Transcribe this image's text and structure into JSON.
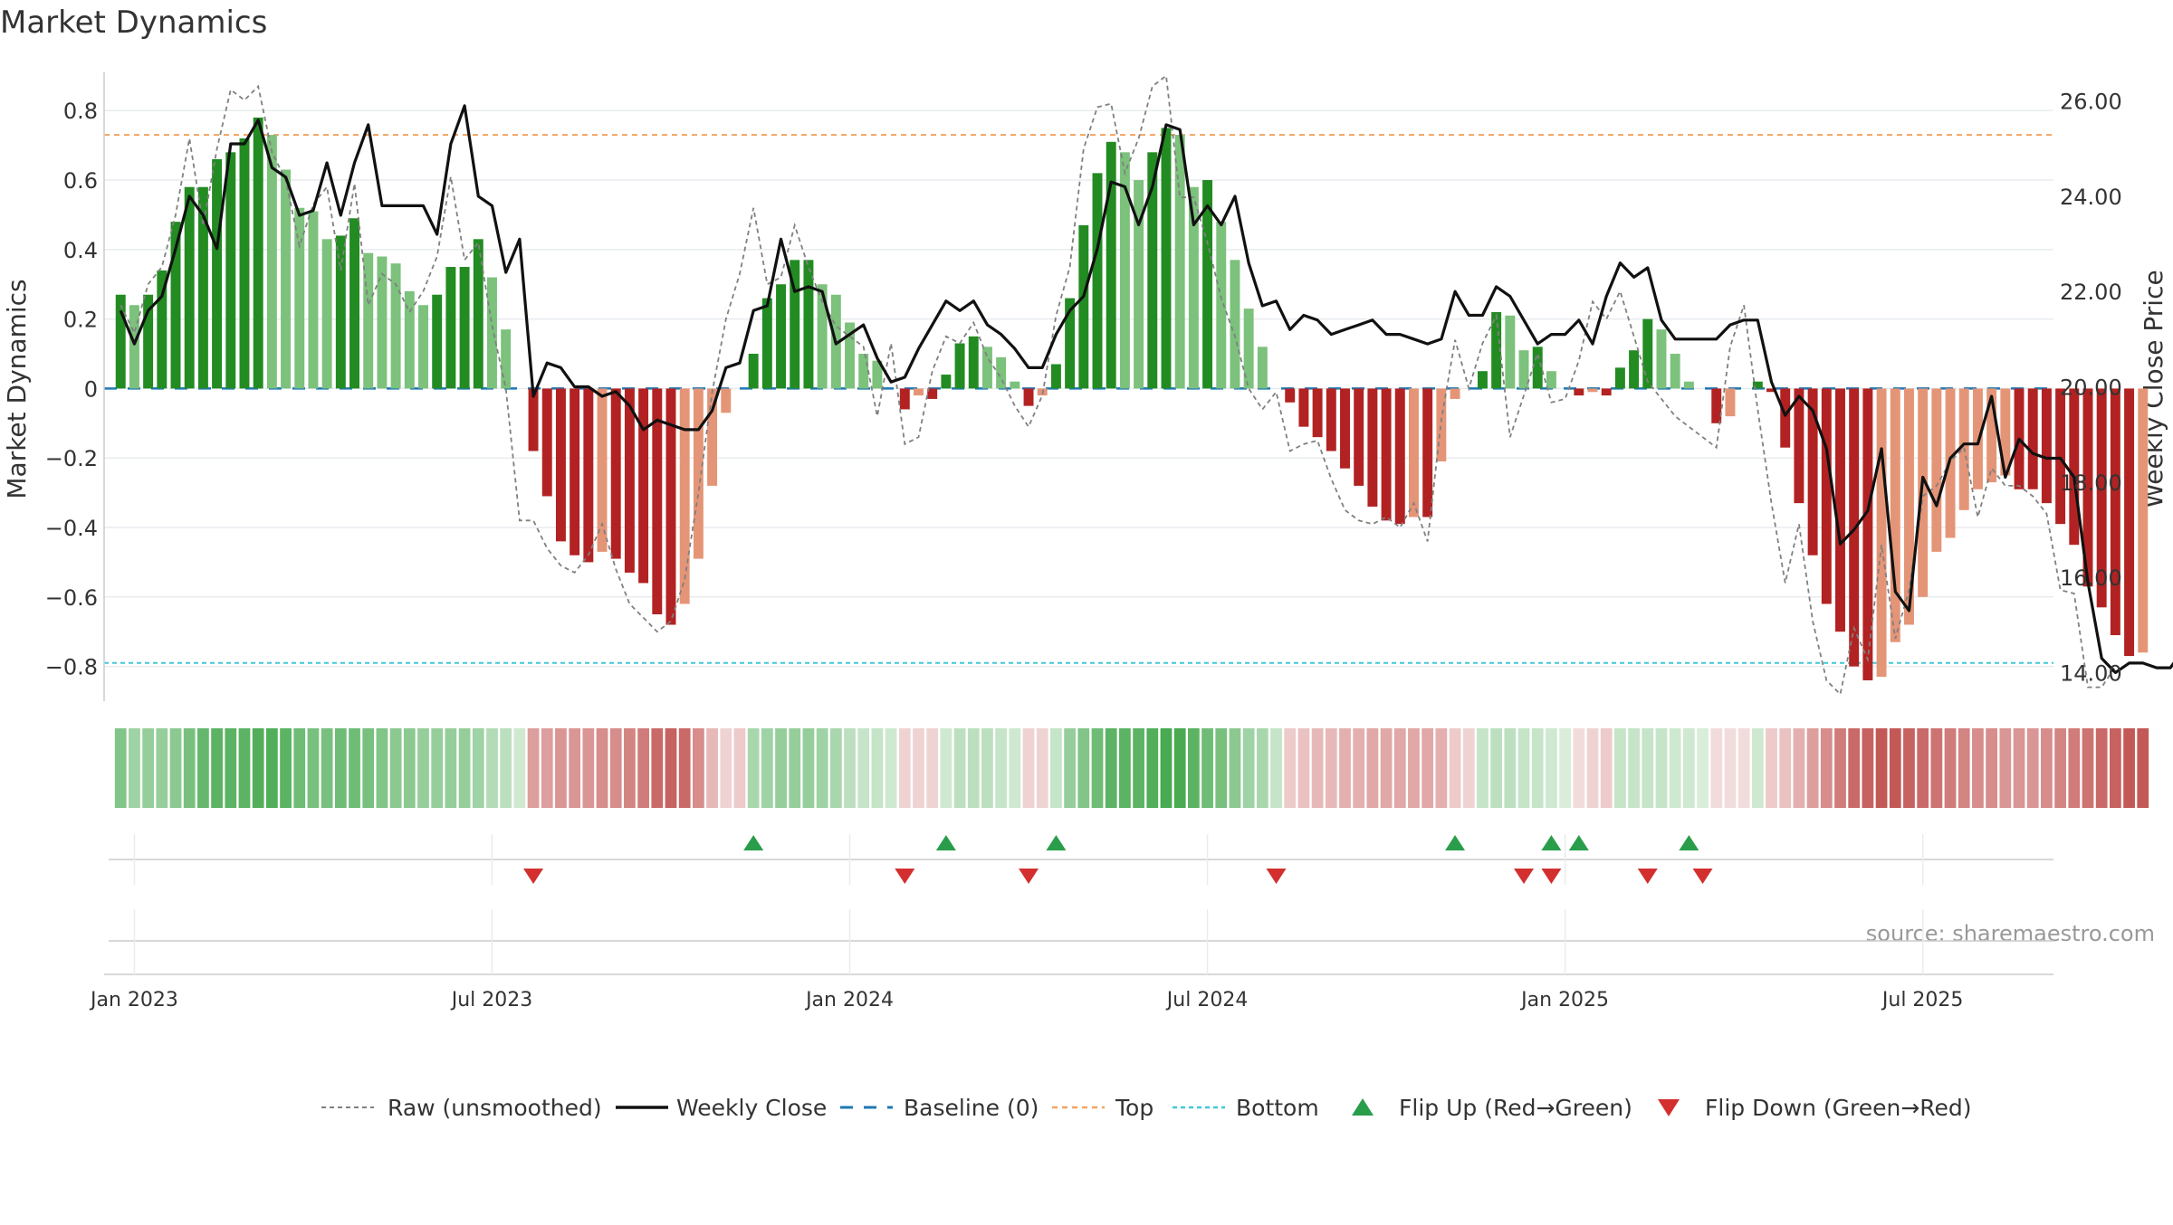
{
  "chart_data": {
    "type": "bar",
    "title": "Market Dynamics",
    "ylabel": "Market Dynamics",
    "ylabel_right": "Weekly Close Price",
    "ylim": [
      -0.9,
      0.91
    ],
    "ylim_right": [
      13.4,
      26.6
    ],
    "y_ticks": [
      "−0.8",
      "−0.6",
      "−0.4",
      "−0.2",
      "0",
      "0.2",
      "0.4",
      "0.6",
      "0.8"
    ],
    "y_tick_values": [
      -0.8,
      -0.6,
      -0.4,
      -0.2,
      0,
      0.2,
      0.4,
      0.6,
      0.8
    ],
    "y_right_ticks": [
      "14.00",
      "16.00",
      "18.00",
      "20.00",
      "22.00",
      "24.00",
      "26.00"
    ],
    "y_right_tick_values": [
      14,
      16,
      18,
      20,
      22,
      24,
      26
    ],
    "x_ticks": [
      "Jan 2023",
      "Jul 2023",
      "Jan 2024",
      "Jul 2024",
      "Jan 2025",
      "Jul 2025"
    ],
    "x_tick_positions_weeks": [
      1,
      27,
      53,
      79,
      105,
      131
    ],
    "x_range_weeks": [
      -1.2,
      140.5
    ],
    "grid": true,
    "legend_position": "bottom",
    "reference_lines": {
      "top": 0.73,
      "bottom": -0.79,
      "baseline": 0
    },
    "dynamics": [
      0.27,
      0.24,
      0.27,
      0.34,
      0.48,
      0.58,
      0.58,
      0.66,
      0.68,
      0.72,
      0.78,
      0.73,
      0.63,
      0.52,
      0.51,
      0.43,
      0.44,
      0.49,
      0.39,
      0.38,
      0.36,
      0.28,
      0.24,
      0.27,
      0.35,
      0.35,
      0.43,
      0.32,
      0.17,
      0.0,
      -0.18,
      -0.31,
      -0.44,
      -0.48,
      -0.5,
      -0.47,
      -0.49,
      -0.53,
      -0.56,
      -0.65,
      -0.68,
      -0.62,
      -0.49,
      -0.28,
      -0.07,
      0.0,
      0.1,
      0.26,
      0.3,
      0.37,
      0.37,
      0.3,
      0.27,
      0.19,
      0.1,
      0.08,
      0.0,
      -0.06,
      -0.02,
      -0.03,
      0.04,
      0.13,
      0.15,
      0.12,
      0.09,
      0.02,
      -0.05,
      -0.02,
      0.07,
      0.26,
      0.47,
      0.62,
      0.71,
      0.68,
      0.6,
      0.68,
      0.75,
      0.73,
      0.58,
      0.6,
      0.48,
      0.37,
      0.23,
      0.12,
      0.0,
      -0.04,
      -0.11,
      -0.14,
      -0.18,
      -0.23,
      -0.28,
      -0.34,
      -0.38,
      -0.39,
      -0.37,
      -0.37,
      -0.21,
      -0.03,
      0.0,
      0.05,
      0.22,
      0.21,
      0.11,
      0.12,
      0.05,
      0.0,
      -0.02,
      -0.01,
      -0.02,
      0.06,
      0.11,
      0.2,
      0.17,
      0.1,
      0.02,
      0.0,
      -0.1,
      -0.08,
      0.0,
      0.02,
      -0.01,
      -0.17,
      -0.33,
      -0.48,
      -0.62,
      -0.7,
      -0.8,
      -0.84,
      -0.83,
      -0.73,
      -0.68,
      -0.6,
      -0.47,
      -0.43,
      -0.35,
      -0.29,
      -0.27,
      -0.25,
      -0.29,
      -0.29,
      -0.33,
      -0.39,
      -0.45,
      -0.57,
      -0.63,
      -0.71,
      -0.77,
      -0.76
    ],
    "series": [
      {
        "name": "Raw (unsmoothed)",
        "values": [
          0.24,
          0.16,
          0.3,
          0.35,
          0.5,
          0.72,
          0.47,
          0.69,
          0.86,
          0.83,
          0.87,
          0.68,
          0.6,
          0.41,
          0.53,
          0.58,
          0.34,
          0.59,
          0.24,
          0.33,
          0.3,
          0.22,
          0.28,
          0.38,
          0.61,
          0.37,
          0.42,
          0.18,
          0.0,
          -0.38,
          -0.38,
          -0.46,
          -0.51,
          -0.53,
          -0.48,
          -0.39,
          -0.52,
          -0.62,
          -0.66,
          -0.7,
          -0.67,
          -0.55,
          -0.3,
          -0.01,
          0.2,
          0.33,
          0.52,
          0.3,
          0.32,
          0.47,
          0.35,
          0.25,
          0.18,
          0.15,
          0.12,
          -0.08,
          0.13,
          -0.16,
          -0.14,
          0.05,
          0.15,
          0.13,
          0.19,
          0.09,
          0.03,
          -0.05,
          -0.11,
          -0.02,
          0.21,
          0.35,
          0.69,
          0.81,
          0.82,
          0.62,
          0.72,
          0.87,
          0.9,
          0.55,
          0.55,
          0.42,
          0.26,
          0.15,
          0.0,
          -0.06,
          -0.01,
          -0.18,
          -0.16,
          -0.15,
          -0.26,
          -0.35,
          -0.38,
          -0.39,
          -0.37,
          -0.4,
          -0.33,
          -0.44,
          -0.09,
          0.14,
          0.0,
          0.13,
          0.21,
          -0.14,
          -0.02,
          0.1,
          -0.04,
          -0.03,
          0.08,
          0.25,
          0.2,
          0.28,
          0.15,
          0.02,
          -0.03,
          -0.08,
          -0.11,
          -0.14,
          -0.17,
          0.12,
          0.24,
          -0.06,
          -0.33,
          -0.56,
          -0.39,
          -0.67,
          -0.84,
          -0.88,
          -0.69,
          -0.78,
          -0.45,
          -0.72,
          -0.58,
          -0.31,
          -0.28,
          -0.21,
          -0.17,
          -0.37,
          -0.23,
          -0.28,
          -0.28,
          -0.31,
          -0.36,
          -0.58,
          -0.59,
          -0.86,
          -0.86,
          -0.8
        ]
      },
      {
        "name": "Weekly Close",
        "values": [
          21.6,
          20.9,
          21.6,
          21.9,
          22.9,
          24.0,
          23.6,
          22.9,
          25.1,
          25.1,
          25.6,
          24.6,
          24.4,
          23.6,
          23.7,
          24.7,
          23.6,
          24.7,
          25.5,
          23.8,
          23.8,
          23.8,
          23.8,
          23.2,
          25.1,
          25.9,
          24.0,
          23.8,
          22.4,
          23.1,
          19.8,
          20.5,
          20.4,
          20.0,
          20.0,
          19.8,
          19.9,
          19.6,
          19.1,
          19.3,
          19.2,
          19.1,
          19.1,
          19.5,
          20.4,
          20.5,
          21.6,
          21.7,
          23.1,
          22.0,
          22.1,
          22.0,
          20.9,
          21.1,
          21.3,
          20.6,
          20.1,
          20.2,
          20.8,
          21.3,
          21.8,
          21.6,
          21.8,
          21.3,
          21.1,
          20.8,
          20.4,
          20.4,
          21.1,
          21.6,
          21.9,
          22.9,
          24.3,
          24.2,
          23.4,
          24.2,
          25.5,
          25.4,
          23.4,
          23.8,
          23.4,
          24.0,
          22.6,
          21.7,
          21.8,
          21.2,
          21.5,
          21.4,
          21.1,
          21.2,
          21.3,
          21.4,
          21.1,
          21.1,
          21.0,
          20.9,
          21.0,
          22.0,
          21.5,
          21.5,
          22.1,
          21.9,
          21.4,
          20.9,
          21.1,
          21.1,
          21.4,
          20.9,
          21.9,
          22.6,
          22.3,
          22.5,
          21.4,
          21.0,
          21.0,
          21.0,
          21.0,
          21.3,
          21.4,
          21.4,
          20.1,
          19.4,
          19.8,
          19.5,
          18.7,
          16.7,
          17.0,
          17.4,
          18.7,
          15.7,
          15.3,
          18.1,
          17.5,
          18.5,
          18.8,
          18.8,
          19.8,
          18.1,
          18.9,
          18.6,
          18.5,
          18.5,
          18.1,
          15.9,
          14.3,
          14.0,
          14.2,
          14.2,
          14.1,
          14.1,
          14.5
        ]
      },
      {
        "name": "Baseline (0)",
        "values": [
          0
        ]
      },
      {
        "name": "Top",
        "values": [
          0.73
        ]
      },
      {
        "name": "Bottom",
        "values": [
          -0.79
        ]
      },
      {
        "name": "Flip Up (Red→Green)",
        "values": [
          46,
          60,
          68,
          97,
          104,
          106,
          114
        ]
      },
      {
        "name": "Flip Down (Green→Red)",
        "values": [
          30,
          57,
          66,
          84,
          102,
          104,
          111,
          115
        ]
      }
    ],
    "regime_band_intensity": [
      0.65,
      0.5,
      0.55,
      0.55,
      0.6,
      0.7,
      0.8,
      0.85,
      0.85,
      0.85,
      0.9,
      0.9,
      0.85,
      0.75,
      0.7,
      0.7,
      0.75,
      0.75,
      0.7,
      0.65,
      0.6,
      0.6,
      0.55,
      0.55,
      0.55,
      0.55,
      0.5,
      0.4,
      0.35,
      0.25,
      0.55,
      0.55,
      0.6,
      0.6,
      0.6,
      0.65,
      0.65,
      0.7,
      0.75,
      0.85,
      0.9,
      0.85,
      0.65,
      0.4,
      0.25,
      0.3,
      0.45,
      0.5,
      0.55,
      0.55,
      0.55,
      0.5,
      0.45,
      0.35,
      0.3,
      0.3,
      0.25,
      0.25,
      0.25,
      0.25,
      0.25,
      0.35,
      0.35,
      0.35,
      0.3,
      0.25,
      0.25,
      0.25,
      0.3,
      0.55,
      0.65,
      0.75,
      0.85,
      0.85,
      0.85,
      0.9,
      0.95,
      0.95,
      0.85,
      0.75,
      0.7,
      0.6,
      0.5,
      0.45,
      0.3,
      0.3,
      0.35,
      0.4,
      0.4,
      0.45,
      0.45,
      0.5,
      0.5,
      0.5,
      0.5,
      0.5,
      0.45,
      0.3,
      0.25,
      0.3,
      0.35,
      0.35,
      0.3,
      0.3,
      0.25,
      0.2,
      0.2,
      0.25,
      0.3,
      0.3,
      0.3,
      0.3,
      0.3,
      0.25,
      0.25,
      0.2,
      0.2,
      0.2,
      0.2,
      0.25,
      0.3,
      0.35,
      0.45,
      0.55,
      0.65,
      0.75,
      0.85,
      0.9,
      0.95,
      0.95,
      0.9,
      0.85,
      0.8,
      0.75,
      0.7,
      0.65,
      0.65,
      0.6,
      0.6,
      0.6,
      0.65,
      0.7,
      0.75,
      0.8,
      0.85,
      0.9,
      0.95,
      0.95
    ],
    "annotation": "source: sharemaestro.com"
  },
  "colors": {
    "green_strong": "#228b22",
    "green_light": "#7cc17c",
    "red_strong": "#b22222",
    "red_light": "#e59577",
    "raw": "#808080",
    "close": "#111111",
    "baseline": "#1f77b4",
    "top": "#f4a460",
    "bottom": "#40c8d8",
    "flip_up": "#2a9d4b",
    "flip_down": "#d32f2f",
    "band_green": "#3fa548",
    "band_red": "#c0504d",
    "grid": "#e8ecef",
    "text": "#333333"
  }
}
